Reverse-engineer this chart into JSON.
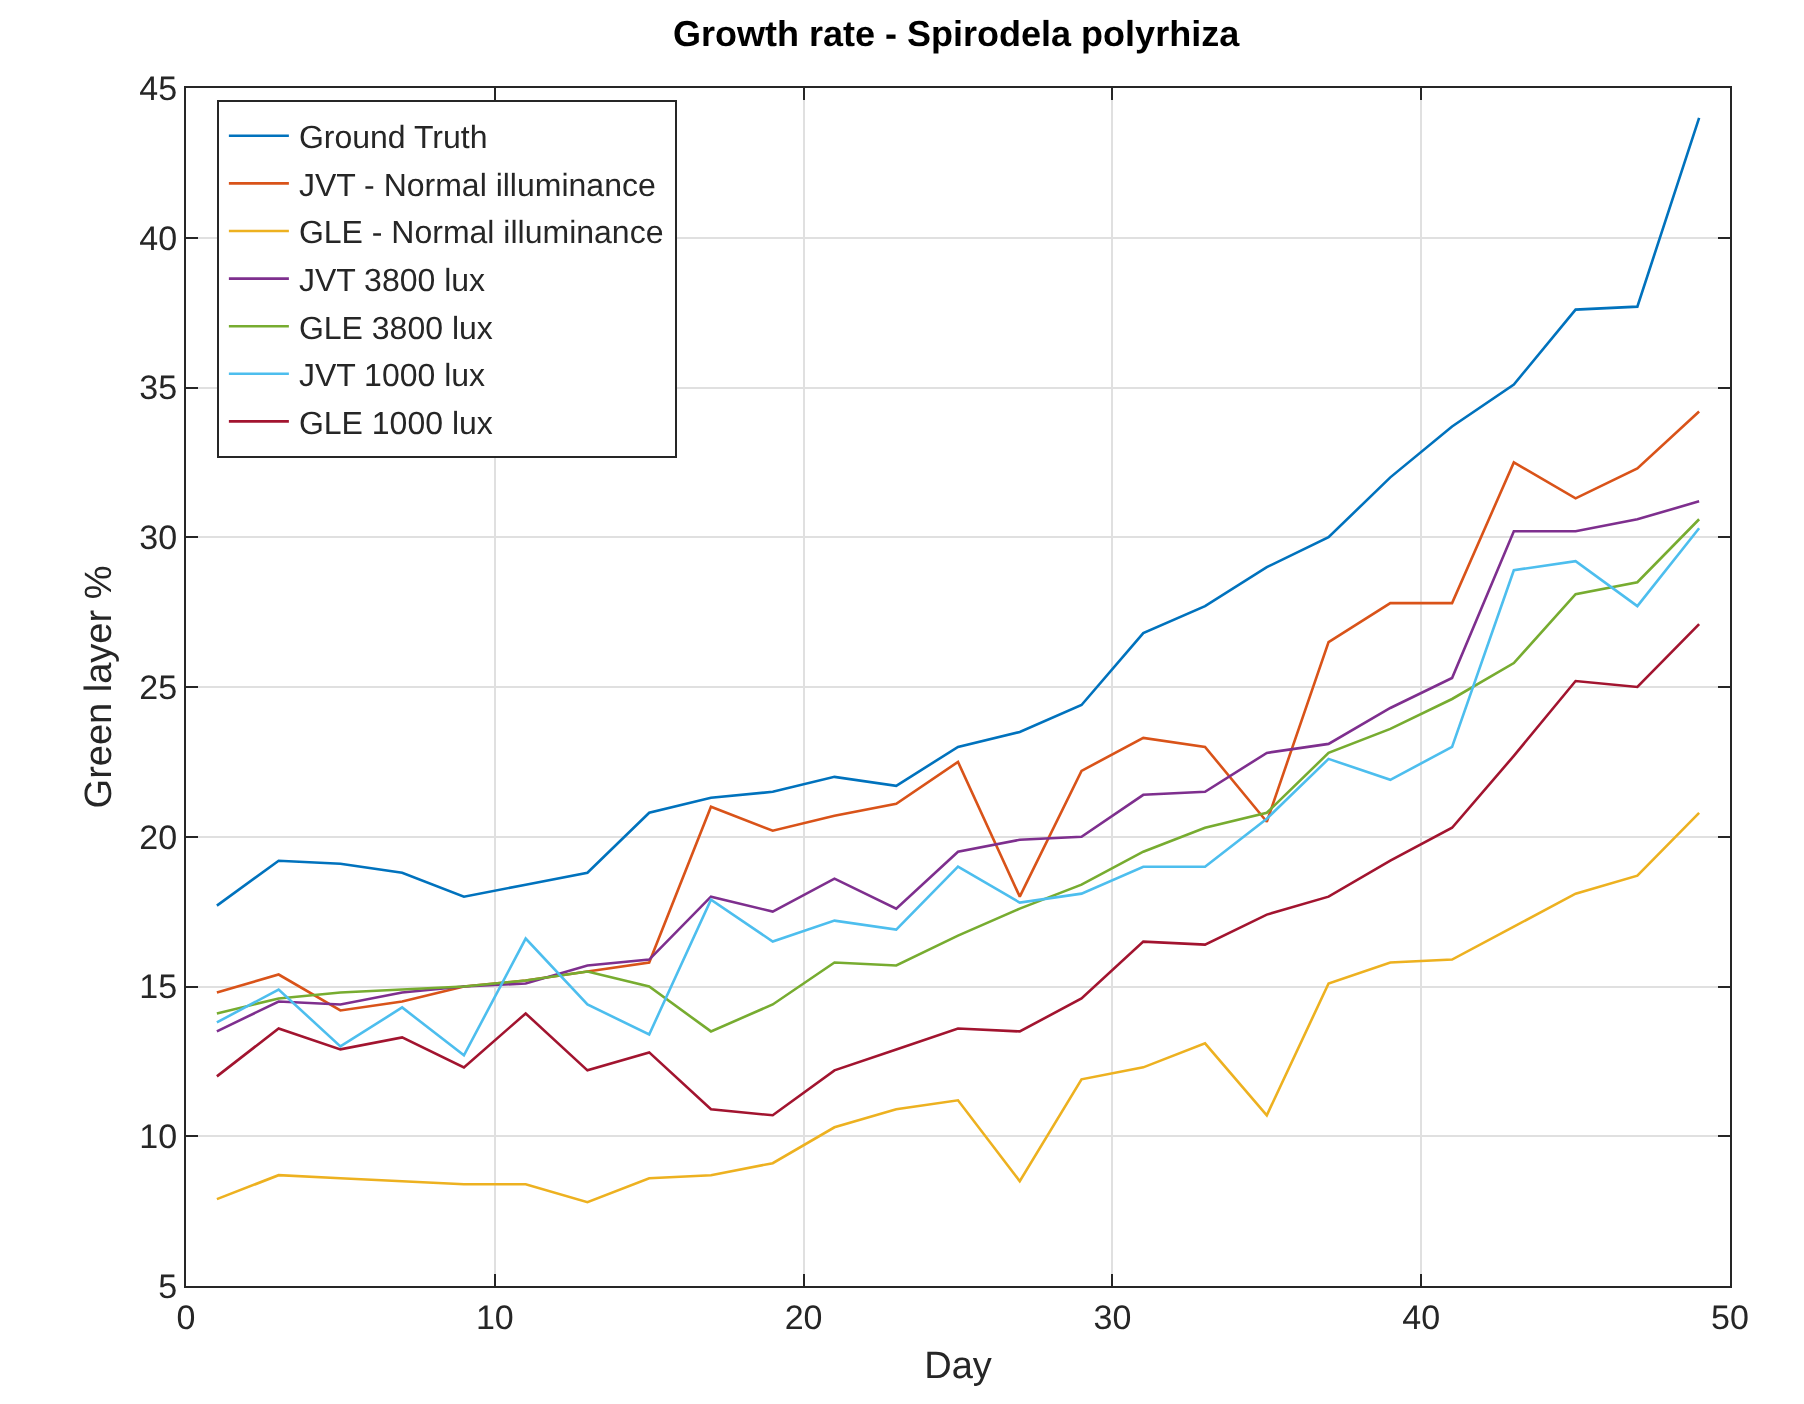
{
  "chart_data": {
    "type": "line",
    "title": "Growth rate - Spirodela polyrhiza",
    "xlabel": "Day",
    "ylabel": "Green layer %",
    "x": [
      1,
      3,
      5,
      7,
      9,
      11,
      13,
      15,
      17,
      19,
      21,
      23,
      25,
      27,
      29,
      31,
      33,
      35,
      37,
      39,
      41,
      43,
      45,
      47,
      49
    ],
    "series": [
      {
        "name": "Ground Truth",
        "color": "#0072bd",
        "values": [
          17.7,
          19.2,
          19.1,
          18.8,
          18.0,
          18.4,
          18.8,
          20.8,
          21.3,
          21.5,
          22.0,
          21.7,
          23.0,
          23.5,
          24.4,
          26.8,
          27.7,
          29.0,
          30.0,
          32.0,
          33.7,
          35.1,
          37.6,
          37.7,
          44.0
        ]
      },
      {
        "name": "JVT - Normal illuminance",
        "color": "#d95319",
        "values": [
          14.8,
          15.4,
          14.2,
          14.5,
          15.0,
          15.2,
          15.5,
          15.8,
          21.0,
          20.2,
          20.7,
          21.1,
          22.5,
          18.0,
          22.2,
          23.3,
          23.0,
          20.5,
          26.5,
          27.8,
          27.8,
          32.5,
          31.3,
          32.3,
          34.2
        ]
      },
      {
        "name": "GLE - Normal illuminance",
        "color": "#edb120",
        "values": [
          7.9,
          8.7,
          8.6,
          8.5,
          8.4,
          8.4,
          7.8,
          8.6,
          8.7,
          9.1,
          10.3,
          10.9,
          11.2,
          8.5,
          11.9,
          12.3,
          13.1,
          10.7,
          15.1,
          15.8,
          15.9,
          17.0,
          18.1,
          18.7,
          20.8
        ]
      },
      {
        "name": "JVT 3800 lux",
        "color": "#7e2f8e",
        "values": [
          13.5,
          14.5,
          14.4,
          14.8,
          15.0,
          15.1,
          15.7,
          15.9,
          18.0,
          17.5,
          18.6,
          17.6,
          19.5,
          19.9,
          20.0,
          21.4,
          21.5,
          22.8,
          23.1,
          24.3,
          25.3,
          30.2,
          30.2,
          30.6,
          31.2
        ]
      },
      {
        "name": "GLE 3800 lux",
        "color": "#77ac30",
        "values": [
          14.1,
          14.6,
          14.8,
          14.9,
          15.0,
          15.2,
          15.5,
          15.0,
          13.5,
          14.4,
          15.8,
          15.7,
          16.7,
          17.6,
          18.4,
          19.5,
          20.3,
          20.8,
          22.8,
          23.6,
          24.6,
          25.8,
          28.1,
          28.5,
          30.6
        ]
      },
      {
        "name": "JVT 1000 lux",
        "color": "#4dbeee",
        "values": [
          13.8,
          14.9,
          13.0,
          14.3,
          12.7,
          16.6,
          14.4,
          13.4,
          17.9,
          16.5,
          17.2,
          16.9,
          19.0,
          17.8,
          18.1,
          19.0,
          19.0,
          20.6,
          22.6,
          21.9,
          23.0,
          28.9,
          29.2,
          27.7,
          30.3
        ]
      },
      {
        "name": "GLE 1000 lux",
        "color": "#a2142f",
        "values": [
          12.0,
          13.6,
          12.9,
          13.3,
          12.3,
          14.1,
          12.2,
          12.8,
          10.9,
          10.7,
          12.2,
          12.9,
          13.6,
          13.5,
          14.6,
          16.5,
          16.4,
          17.4,
          18.0,
          19.2,
          20.3,
          22.7,
          25.2,
          25.0,
          27.1
        ]
      }
    ],
    "xlim": [
      0,
      50
    ],
    "xticks": [
      0,
      10,
      20,
      30,
      40,
      50
    ],
    "ylim": [
      5,
      45
    ],
    "yticks": [
      5,
      10,
      15,
      20,
      25,
      30,
      35,
      40,
      45
    ],
    "grid": true,
    "legend": "top left",
    "marker": "none",
    "line_style": "solid"
  }
}
